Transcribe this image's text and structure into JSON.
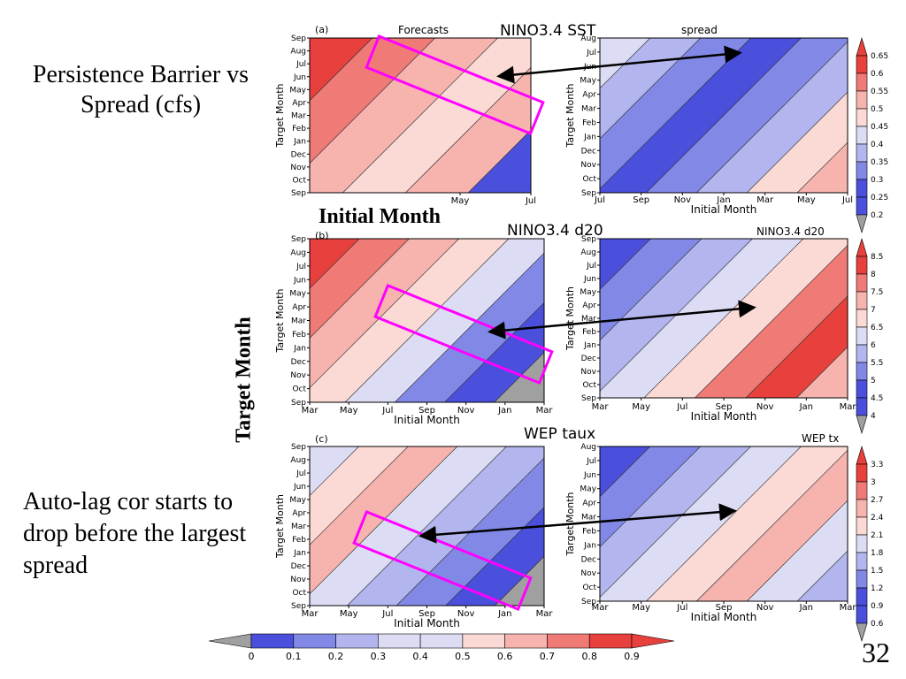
{
  "slide": {
    "left_text_top": "Persistence Barrier vs Spread (cfs)",
    "initial_month_label": "Initial Month",
    "target_month_label": "Target Month",
    "left_text_bottom": "Auto-lag cor starts to drop before the largest spread",
    "page_number": "32"
  },
  "colors": {
    "strong_red": "#e8403c",
    "mid_red": "#f07a76",
    "light_red": "#f7b3ae",
    "pale_red": "#fbd9d4",
    "pale_blue": "#dcdcf5",
    "light_blue": "#b3b6ee",
    "mid_blue": "#8188e6",
    "strong_blue": "#4a4fdc",
    "gray": "#a0a0a0",
    "magenta": "#ff00ff"
  },
  "chart_data": [
    {
      "type": "heatmap",
      "panel_tag": "(a)",
      "inner_title": "Forecasts",
      "title": "NINO3.4 SST",
      "ylabel": "Target Month",
      "yticks": [
        "Sep",
        "Aug",
        "Jul",
        "Jun",
        "May",
        "Apr",
        "Mar",
        "Feb",
        "Jan",
        "Dec",
        "Nov",
        "Oct",
        "Sep"
      ],
      "xticks": [
        "May",
        "Jul"
      ],
      "xlabel": ""
    },
    {
      "type": "heatmap",
      "inner_title": "spread",
      "title": "NINO3.4 SST",
      "ylabel": "Target Month",
      "yticks": [
        "Aug",
        "Jul",
        "Jun",
        "May",
        "Apr",
        "Mar",
        "Feb",
        "Jan",
        "Dec",
        "Nov",
        "Oct",
        "Sep"
      ],
      "xticks": [
        "Jul",
        "Sep",
        "Nov",
        "Jan",
        "Mar",
        "May",
        "Jul"
      ],
      "xlabel": "Initial Month",
      "colorbar": [
        "0.65",
        "0.6",
        "0.55",
        "0.5",
        "0.45",
        "0.4",
        "0.35",
        "0.3",
        "0.25",
        "0.2"
      ]
    },
    {
      "type": "heatmap",
      "panel_tag": "(b)",
      "title": "NINO3.4 d20",
      "ylabel": "Target Month",
      "yticks": [
        "Sep",
        "Aug",
        "Jul",
        "Jun",
        "May",
        "Apr",
        "Mar",
        "Feb",
        "Jan",
        "Dec",
        "Nov",
        "Oct",
        "Sep"
      ],
      "xticks": [
        "Mar",
        "May",
        "Jul",
        "Sep",
        "Nov",
        "Jan",
        "Mar"
      ],
      "xlabel": "Initial Month"
    },
    {
      "type": "heatmap",
      "inner_title": "NINO3.4 d20",
      "ylabel": "Target Month",
      "yticks": [
        "Sep",
        "Aug",
        "Jul",
        "Jun",
        "May",
        "Apr",
        "Mar",
        "Feb",
        "Jan",
        "Dec",
        "Nov",
        "Oct",
        "Sep"
      ],
      "xticks": [
        "Mar",
        "May",
        "Jul",
        "Sep",
        "Nov",
        "Jan",
        "Mar"
      ],
      "xlabel": "Initial Month",
      "colorbar": [
        "8.5",
        "8",
        "7.5",
        "7",
        "6.5",
        "6",
        "5.5",
        "5",
        "4.5",
        "4"
      ]
    },
    {
      "type": "heatmap",
      "panel_tag": "(c)",
      "title": "WEP taux",
      "ylabel": "Target Month",
      "yticks": [
        "Sep",
        "Aug",
        "Jul",
        "Jun",
        "May",
        "Apr",
        "Mar",
        "Feb",
        "Jan",
        "Dec",
        "Nov",
        "Oct",
        "Sep"
      ],
      "xticks": [
        "Mar",
        "May",
        "Jul",
        "Sep",
        "Nov",
        "Jan",
        "Mar"
      ],
      "xlabel": "Initial Month"
    },
    {
      "type": "heatmap",
      "inner_title": "WEP tx",
      "ylabel": "Target Month",
      "yticks": [
        "Aug",
        "Jul",
        "Jun",
        "May",
        "Apr",
        "Mar",
        "Feb",
        "Jan",
        "Dec",
        "Nov",
        "Oct",
        "Sep"
      ],
      "xticks": [
        "Mar",
        "May",
        "Jul",
        "Sep",
        "Nov",
        "Jan",
        "Mar"
      ],
      "xlabel": "Initial Month",
      "colorbar": [
        "3.3",
        "3",
        "2.7",
        "2.4",
        "2.1",
        "1.8",
        "1.5",
        "1.2",
        "0.9",
        "0.6"
      ]
    }
  ],
  "bottom_colorbar": [
    "0",
    "0.1",
    "0.2",
    "0.3",
    "0.4",
    "0.5",
    "0.6",
    "0.7",
    "0.8",
    "0.9"
  ]
}
